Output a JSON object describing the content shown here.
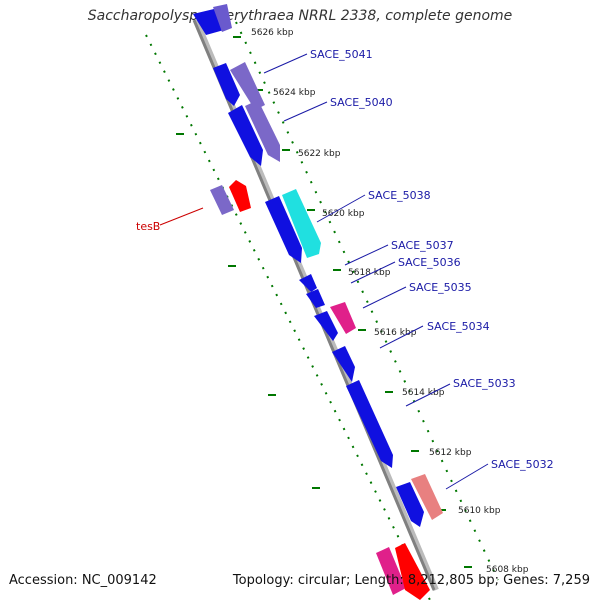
{
  "title": "Saccharopolyspora erythraea NRRL 2338, complete genome",
  "footer": {
    "accession": "Accession: NC_009142",
    "summary": "Topology: circular; Length: 8,212,805 bp; Genes: 7,259"
  },
  "colors": {
    "backbone": "#808080",
    "cds": "#1010e0",
    "cds_light": "#7b68c8",
    "cyan": "#20e0e0",
    "red": "#ff0000",
    "pink": "#e0208a",
    "salmon": "#e88080",
    "tick": "#007700",
    "label_line": "#1a1aa6",
    "tes_line": "#cc0000"
  },
  "scale_labels": [
    "5626 kbp",
    "5624 kbp",
    "5622 kbp",
    "5620 kbp",
    "5618 kbp",
    "5616 kbp",
    "5614 kbp",
    "5612 kbp",
    "5610 kbp",
    "5608 kbp"
  ],
  "gene_labels": [
    "SACE_5041",
    "SACE_5040",
    "SACE_5038",
    "SACE_5037",
    "SACE_5036",
    "SACE_5035",
    "SACE_5034",
    "SACE_5033",
    "SACE_5032"
  ],
  "tes_label": "tesB"
}
